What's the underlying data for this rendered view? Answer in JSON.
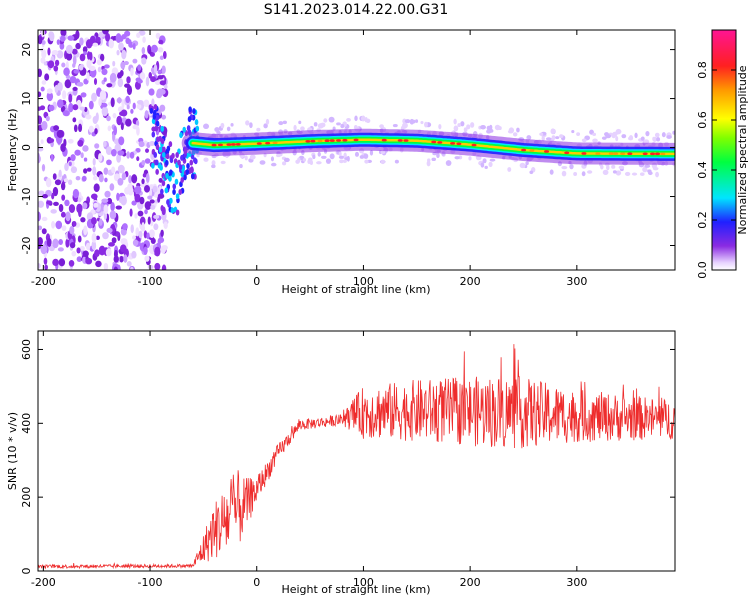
{
  "title": "S141.2023.014.22.00.G31",
  "chart_data": [
    {
      "type": "heatmap",
      "xlabel": "Height of straight line (km)",
      "ylabel": "Frequency (Hz)",
      "xlim": [
        -205,
        392
      ],
      "ylim": [
        -25,
        24
      ],
      "xticks": [
        -200,
        -100,
        0,
        100,
        200,
        300
      ],
      "yticks": [
        -20,
        -10,
        0,
        10,
        20
      ],
      "colorbar": {
        "label": "Normalized spectral amplitude",
        "range": [
          0,
          0.96
        ],
        "ticks": [
          0.0,
          0.2,
          0.4,
          0.6,
          0.8
        ],
        "colormap": "rainbow (white-violet-blue-cyan-green-yellow-red-magenta)"
      },
      "ridge": [
        {
          "x": -95,
          "y": 2
        },
        {
          "x": -85,
          "y": -5
        },
        {
          "x": -75,
          "y": -7
        },
        {
          "x": -65,
          "y": 1
        },
        {
          "x": -40,
          "y": 0.5
        },
        {
          "x": 0,
          "y": 0.8
        },
        {
          "x": 50,
          "y": 1.3
        },
        {
          "x": 100,
          "y": 1.6
        },
        {
          "x": 150,
          "y": 1.4
        },
        {
          "x": 200,
          "y": 0.6
        },
        {
          "x": 250,
          "y": -0.5
        },
        {
          "x": 300,
          "y": -1.2
        },
        {
          "x": 390,
          "y": -1.3
        }
      ],
      "scatter_noise_region": [
        -205,
        -95
      ]
    },
    {
      "type": "line",
      "xlabel": "Height of straight line (km)",
      "ylabel": "SNR (10 * v/v)",
      "xlim": [
        -205,
        392
      ],
      "ylim": [
        0,
        650
      ],
      "xticks": [
        -200,
        -100,
        0,
        100,
        200,
        300
      ],
      "yticks": [
        0,
        200,
        400,
        600
      ],
      "series": [
        {
          "color": "#ee2c2c",
          "envelope": [
            {
              "x": -205,
              "mean": 12,
              "spread": 8
            },
            {
              "x": -60,
              "mean": 14,
              "spread": 8
            },
            {
              "x": -50,
              "mean": 60,
              "spread": 70
            },
            {
              "x": -40,
              "mean": 110,
              "spread": 130
            },
            {
              "x": -20,
              "mean": 160,
              "spread": 200
            },
            {
              "x": -10,
              "mean": 180,
              "spread": 120
            },
            {
              "x": 0,
              "mean": 220,
              "spread": 60
            },
            {
              "x": 20,
              "mean": 320,
              "spread": 40
            },
            {
              "x": 40,
              "mean": 395,
              "spread": 25
            },
            {
              "x": 80,
              "mean": 410,
              "spread": 25
            },
            {
              "x": 100,
              "mean": 430,
              "spread": 120
            },
            {
              "x": 150,
              "mean": 435,
              "spread": 140
            },
            {
              "x": 240,
              "mean": 430,
              "spread": 170
            },
            {
              "x": 300,
              "mean": 420,
              "spread": 120
            },
            {
              "x": 392,
              "mean": 410,
              "spread": 90
            }
          ]
        }
      ]
    }
  ]
}
